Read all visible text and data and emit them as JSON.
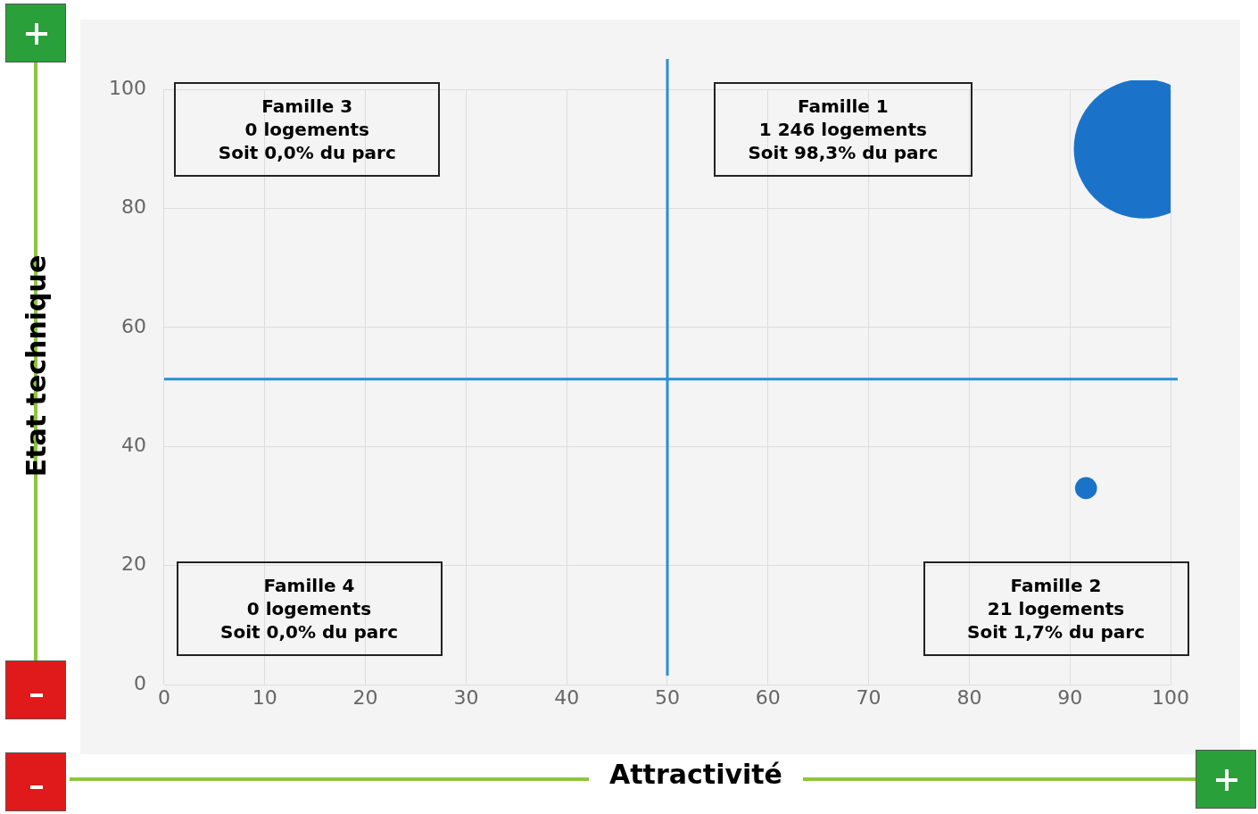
{
  "chart_data": {
    "type": "bubble",
    "xlabel": "Attractivité",
    "ylabel": "Etat technique",
    "series": [
      {
        "color": "#1a73c8",
        "x": [
          97.3,
          91.6
        ],
        "values": [
          90,
          33
        ],
        "sizes": [
          1,
          0.025
        ]
      }
    ],
    "xlim": [
      0,
      100
    ],
    "xticks": [
      0,
      10,
      20,
      30,
      40,
      50,
      60,
      70,
      80,
      90,
      100
    ],
    "ylim": [
      0,
      100
    ],
    "yticks": [
      0,
      20,
      40,
      60,
      80,
      100
    ],
    "ref_lines": [
      {
        "axis": "x",
        "value": 50,
        "color": "#2a8fd6"
      },
      {
        "axis": "y",
        "value": 51.3,
        "color": "#2a8fd6"
      }
    ],
    "annotations": [
      "Famille 3\n0 logements\nSoit 0,0% du parc",
      "Famille 1\n1 246 logements\nSoit 98,3% du parc",
      "Famille 4\n0 logements\nSoit 0,0% du parc",
      "Famille 2\n21 logements\nSoit 1,7% du parc"
    ],
    "grid": true,
    "legend": false,
    "marker": "circle"
  }
}
